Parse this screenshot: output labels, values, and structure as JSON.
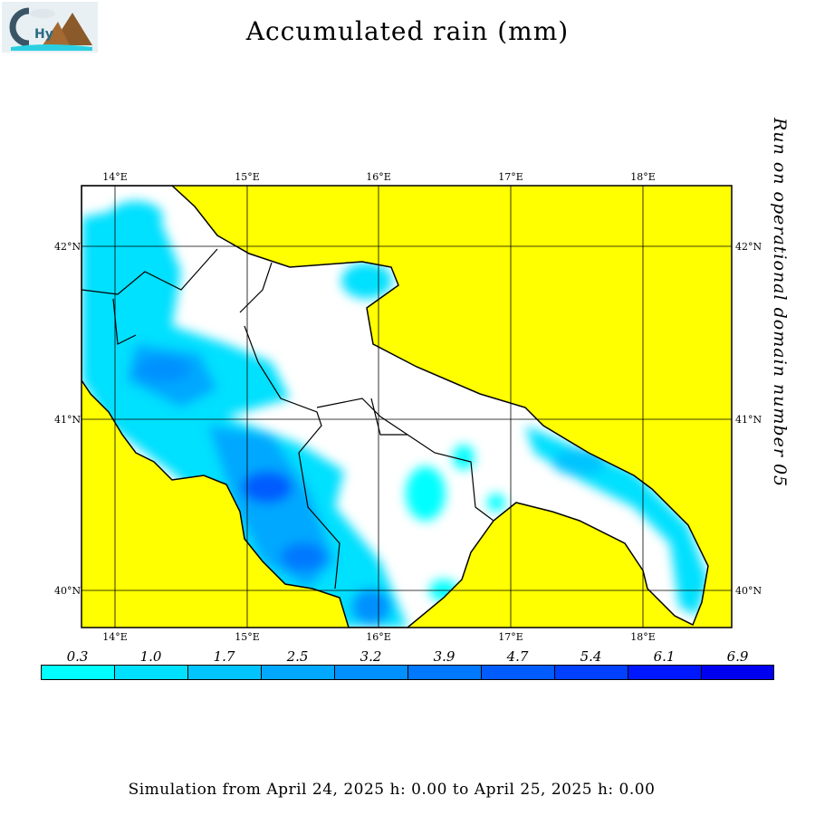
{
  "logo": {
    "text": "CHyM"
  },
  "title": "Accumulated rain (mm)",
  "side_label": "Run on operational domain number 05",
  "map": {
    "lon_labels": [
      "14°E",
      "15°E",
      "16°E",
      "17°E",
      "18°E"
    ],
    "lat_labels": [
      "42°N",
      "41°N",
      "40°N"
    ],
    "sea_color": "#FFFF00",
    "land_color": "#FFFFFF"
  },
  "legend": {
    "values": [
      "0.3",
      "1.0",
      "1.7",
      "2.5",
      "3.2",
      "3.9",
      "4.7",
      "5.4",
      "6.1",
      "6.9"
    ],
    "colors": [
      "#00FFFF",
      "#00E0FF",
      "#00C4FF",
      "#00A8FF",
      "#0090FF",
      "#0078FF",
      "#005CFF",
      "#0040FF",
      "#0018FF",
      "#0000F0"
    ]
  },
  "footer": "Simulation from April 24, 2025 h: 0.00 to April 25, 2025 h: 0.00"
}
